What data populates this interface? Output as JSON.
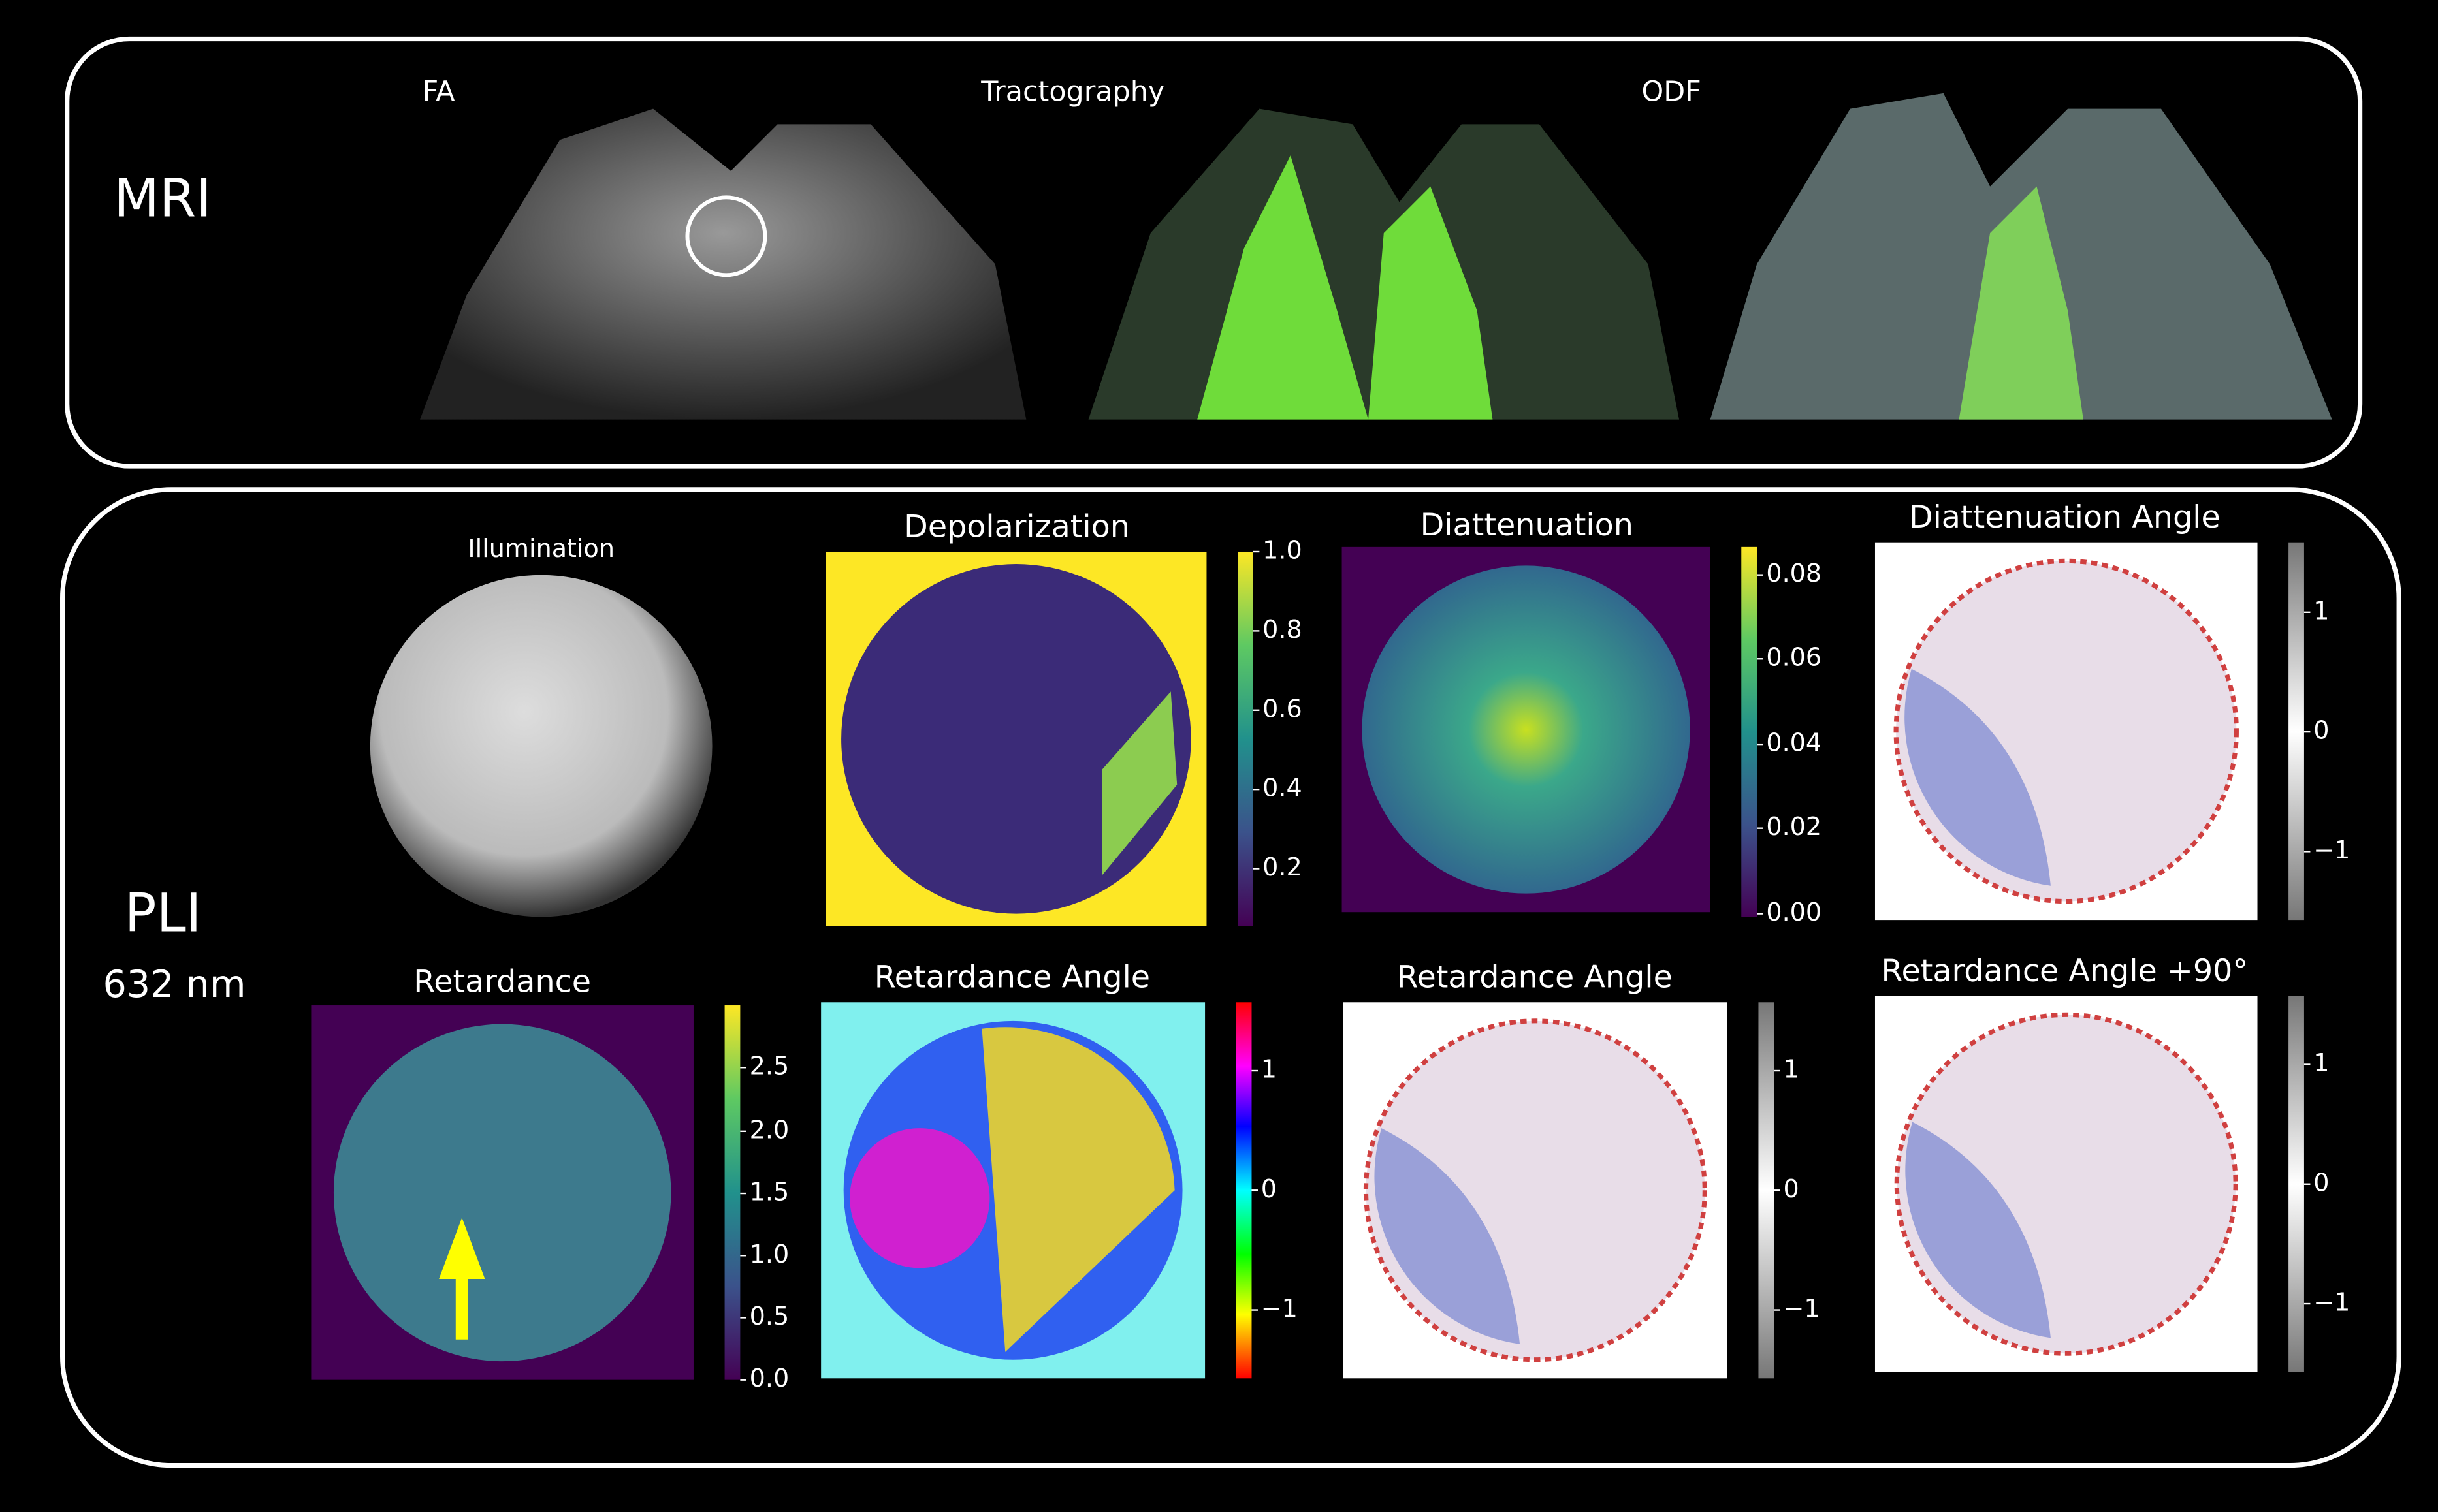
{
  "mri": {
    "label": "MRI",
    "panels": [
      {
        "title": "FA"
      },
      {
        "title": "Tractography"
      },
      {
        "title": "ODF"
      }
    ]
  },
  "pli": {
    "label": "PLI",
    "wavelength": "632 nm",
    "panels": [
      {
        "title": "Illumination"
      },
      {
        "title": "Depolarization",
        "colorbar": [
          "1.0",
          "0.8",
          "0.6",
          "0.4",
          "0.2"
        ]
      },
      {
        "title": "Diattenuation",
        "colorbar": [
          "0.08",
          "0.06",
          "0.04",
          "0.02",
          "0.00"
        ]
      },
      {
        "title": "Diattenuation Angle",
        "colorbar": [
          "1",
          "0",
          "−1"
        ]
      },
      {
        "title": "Retardance",
        "colorbar": [
          "2.5",
          "2.0",
          "1.5",
          "1.0",
          "0.5",
          "0.0"
        ]
      },
      {
        "title": "Retardance Angle",
        "colorbar": [
          "1",
          "0",
          "−1"
        ]
      },
      {
        "title": "Retardance Angle",
        "colorbar": [
          "1",
          "0",
          "−1"
        ]
      },
      {
        "title": "Retardance Angle +90°",
        "colorbar": [
          "1",
          "0",
          "−1"
        ]
      }
    ]
  }
}
